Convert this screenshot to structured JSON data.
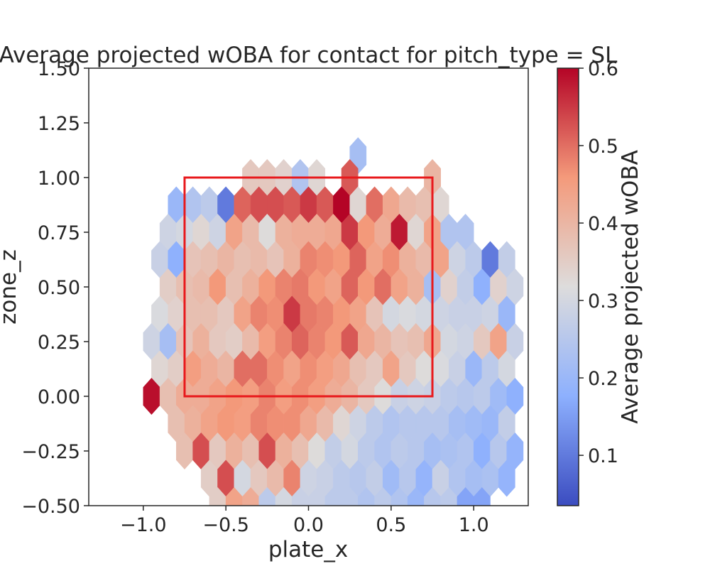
{
  "chart_data": {
    "type": "heatmap",
    "title": "Average projected wOBA for contact for pitch_type = SL",
    "xlabel": "plate_x",
    "ylabel": "zone_z",
    "xlim": [
      -1.33,
      1.33
    ],
    "ylim": [
      -0.5,
      1.5
    ],
    "xticks": [
      -1.0,
      -0.5,
      0.0,
      0.5,
      1.0
    ],
    "xtick_labels": [
      "−1.0",
      "−0.5",
      "0.0",
      "0.5",
      "1.0"
    ],
    "yticks": [
      -0.5,
      -0.25,
      0.0,
      0.25,
      0.5,
      0.75,
      1.0,
      1.25,
      1.5
    ],
    "ytick_labels": [
      "−0.50",
      "−0.25",
      "0.00",
      "0.25",
      "0.50",
      "0.75",
      "1.00",
      "1.25",
      "1.50"
    ],
    "colorbar": {
      "label": "Average projected wOBA",
      "colormap": "coolwarm",
      "range": [
        0.035,
        0.6
      ],
      "ticks": [
        0.1,
        0.2,
        0.3,
        0.4,
        0.5,
        0.6
      ],
      "tick_labels": [
        "0.1",
        "0.2",
        "0.3",
        "0.4",
        "0.5",
        "0.6"
      ]
    },
    "strike_zone": {
      "x": [
        -0.75,
        0.75
      ],
      "z": [
        0.0,
        1.0
      ],
      "color": "#e8191c"
    },
    "hex_width_x": 0.1,
    "hex_row_z": 0.125,
    "hex_cells": [
      [
        0.3,
        1.1,
        0.22
      ],
      [
        -0.35,
        1.0,
        0.36
      ],
      [
        -0.25,
        1.0,
        0.36
      ],
      [
        -0.15,
        1.0,
        0.34
      ],
      [
        -0.05,
        1.0,
        0.24
      ],
      [
        0.05,
        1.0,
        0.33
      ],
      [
        0.25,
        1.0,
        0.52
      ],
      [
        0.75,
        1.0,
        0.4
      ],
      [
        -0.8,
        0.875,
        0.2
      ],
      [
        -0.7,
        0.875,
        0.24
      ],
      [
        -0.6,
        0.875,
        0.26
      ],
      [
        -0.5,
        0.875,
        0.1
      ],
      [
        -0.4,
        0.875,
        0.51
      ],
      [
        -0.3,
        0.875,
        0.53
      ],
      [
        -0.2,
        0.875,
        0.53
      ],
      [
        -0.1,
        0.875,
        0.52
      ],
      [
        0.0,
        0.875,
        0.55
      ],
      [
        0.1,
        0.875,
        0.52
      ],
      [
        0.2,
        0.875,
        0.6
      ],
      [
        0.3,
        0.875,
        0.33
      ],
      [
        0.4,
        0.875,
        0.5
      ],
      [
        0.5,
        0.875,
        0.43
      ],
      [
        0.6,
        0.875,
        0.39
      ],
      [
        0.7,
        0.875,
        0.38
      ],
      [
        0.8,
        0.875,
        0.33
      ],
      [
        -0.85,
        0.75,
        0.29
      ],
      [
        -0.75,
        0.75,
        0.3
      ],
      [
        -0.65,
        0.75,
        0.33
      ],
      [
        -0.55,
        0.75,
        0.29
      ],
      [
        -0.45,
        0.75,
        0.44
      ],
      [
        -0.35,
        0.75,
        0.39
      ],
      [
        -0.25,
        0.75,
        0.32
      ],
      [
        -0.15,
        0.75,
        0.41
      ],
      [
        -0.05,
        0.75,
        0.42
      ],
      [
        0.05,
        0.75,
        0.42
      ],
      [
        0.15,
        0.75,
        0.43
      ],
      [
        0.25,
        0.75,
        0.55
      ],
      [
        0.35,
        0.75,
        0.46
      ],
      [
        0.45,
        0.75,
        0.42
      ],
      [
        0.55,
        0.75,
        0.58
      ],
      [
        0.65,
        0.75,
        0.33
      ],
      [
        0.75,
        0.75,
        0.44
      ],
      [
        0.85,
        0.75,
        0.24
      ],
      [
        0.95,
        0.75,
        0.24
      ],
      [
        -0.9,
        0.625,
        0.28
      ],
      [
        -0.8,
        0.625,
        0.18
      ],
      [
        -0.7,
        0.625,
        0.37
      ],
      [
        -0.6,
        0.625,
        0.38
      ],
      [
        -0.5,
        0.625,
        0.4
      ],
      [
        -0.4,
        0.625,
        0.38
      ],
      [
        -0.3,
        0.625,
        0.39
      ],
      [
        -0.2,
        0.625,
        0.37
      ],
      [
        -0.1,
        0.625,
        0.41
      ],
      [
        0.0,
        0.625,
        0.48
      ],
      [
        0.1,
        0.625,
        0.47
      ],
      [
        0.2,
        0.625,
        0.46
      ],
      [
        0.3,
        0.625,
        0.51
      ],
      [
        0.4,
        0.625,
        0.44
      ],
      [
        0.5,
        0.625,
        0.47
      ],
      [
        0.6,
        0.625,
        0.41
      ],
      [
        0.7,
        0.625,
        0.39
      ],
      [
        0.8,
        0.625,
        0.44
      ],
      [
        0.9,
        0.625,
        0.29
      ],
      [
        1.0,
        0.625,
        0.26
      ],
      [
        1.1,
        0.625,
        0.1
      ],
      [
        1.2,
        0.625,
        0.27
      ],
      [
        -0.85,
        0.5,
        0.35
      ],
      [
        -0.75,
        0.5,
        0.38
      ],
      [
        -0.65,
        0.5,
        0.39
      ],
      [
        -0.55,
        0.5,
        0.46
      ],
      [
        -0.45,
        0.5,
        0.38
      ],
      [
        -0.35,
        0.5,
        0.41
      ],
      [
        -0.25,
        0.5,
        0.46
      ],
      [
        -0.15,
        0.5,
        0.48
      ],
      [
        -0.05,
        0.5,
        0.49
      ],
      [
        0.05,
        0.5,
        0.46
      ],
      [
        0.15,
        0.5,
        0.44
      ],
      [
        0.25,
        0.5,
        0.51
      ],
      [
        0.35,
        0.5,
        0.46
      ],
      [
        0.45,
        0.5,
        0.5
      ],
      [
        0.55,
        0.5,
        0.44
      ],
      [
        0.65,
        0.5,
        0.41
      ],
      [
        0.75,
        0.5,
        0.22
      ],
      [
        0.85,
        0.5,
        0.34
      ],
      [
        0.95,
        0.5,
        0.27
      ],
      [
        1.05,
        0.5,
        0.18
      ],
      [
        1.15,
        0.5,
        0.34
      ],
      [
        1.25,
        0.5,
        0.29
      ],
      [
        -0.9,
        0.375,
        0.31
      ],
      [
        -0.8,
        0.375,
        0.34
      ],
      [
        -0.7,
        0.375,
        0.38
      ],
      [
        -0.6,
        0.375,
        0.38
      ],
      [
        -0.5,
        0.375,
        0.36
      ],
      [
        -0.4,
        0.375,
        0.44
      ],
      [
        -0.3,
        0.375,
        0.48
      ],
      [
        -0.2,
        0.375,
        0.47
      ],
      [
        -0.1,
        0.375,
        0.55
      ],
      [
        0.0,
        0.375,
        0.49
      ],
      [
        0.1,
        0.375,
        0.48
      ],
      [
        0.2,
        0.375,
        0.46
      ],
      [
        0.3,
        0.375,
        0.44
      ],
      [
        0.4,
        0.375,
        0.37
      ],
      [
        0.5,
        0.375,
        0.3
      ],
      [
        0.6,
        0.375,
        0.31
      ],
      [
        0.7,
        0.375,
        0.3
      ],
      [
        0.8,
        0.375,
        0.29
      ],
      [
        0.9,
        0.375,
        0.28
      ],
      [
        1.0,
        0.375,
        0.28
      ],
      [
        1.1,
        0.375,
        0.29
      ],
      [
        1.2,
        0.375,
        0.2
      ],
      [
        -0.95,
        0.25,
        0.29
      ],
      [
        -0.85,
        0.25,
        0.22
      ],
      [
        -0.75,
        0.25,
        0.37
      ],
      [
        -0.65,
        0.25,
        0.41
      ],
      [
        -0.55,
        0.25,
        0.36
      ],
      [
        -0.45,
        0.25,
        0.35
      ],
      [
        -0.35,
        0.25,
        0.39
      ],
      [
        -0.25,
        0.25,
        0.45
      ],
      [
        -0.15,
        0.25,
        0.48
      ],
      [
        -0.05,
        0.25,
        0.51
      ],
      [
        0.05,
        0.25,
        0.48
      ],
      [
        0.15,
        0.25,
        0.46
      ],
      [
        0.25,
        0.25,
        0.52
      ],
      [
        0.35,
        0.25,
        0.43
      ],
      [
        0.45,
        0.25,
        0.4
      ],
      [
        0.55,
        0.25,
        0.37
      ],
      [
        0.65,
        0.25,
        0.38
      ],
      [
        0.75,
        0.25,
        0.43
      ],
      [
        0.85,
        0.25,
        0.3
      ],
      [
        0.95,
        0.25,
        0.29
      ],
      [
        1.05,
        0.25,
        0.36
      ],
      [
        1.15,
        0.25,
        0.44
      ],
      [
        1.25,
        0.25,
        0.28
      ],
      [
        -0.9,
        0.125,
        0.33
      ],
      [
        -0.8,
        0.125,
        0.35
      ],
      [
        -0.7,
        0.125,
        0.45
      ],
      [
        -0.6,
        0.125,
        0.42
      ],
      [
        -0.5,
        0.125,
        0.4
      ],
      [
        -0.4,
        0.125,
        0.5
      ],
      [
        -0.3,
        0.125,
        0.5
      ],
      [
        -0.2,
        0.125,
        0.47
      ],
      [
        -0.1,
        0.125,
        0.44
      ],
      [
        0.0,
        0.125,
        0.47
      ],
      [
        0.1,
        0.125,
        0.45
      ],
      [
        0.2,
        0.125,
        0.43
      ],
      [
        0.3,
        0.125,
        0.38
      ],
      [
        0.4,
        0.125,
        0.36
      ],
      [
        0.5,
        0.125,
        0.44
      ],
      [
        0.6,
        0.125,
        0.36
      ],
      [
        0.7,
        0.125,
        0.32
      ],
      [
        0.8,
        0.125,
        0.31
      ],
      [
        0.9,
        0.125,
        0.28
      ],
      [
        1.0,
        0.125,
        0.2
      ],
      [
        1.1,
        0.125,
        0.26
      ],
      [
        1.2,
        0.125,
        0.3
      ],
      [
        -0.95,
        0.0,
        0.59
      ],
      [
        -0.85,
        0.0,
        0.38
      ],
      [
        -0.75,
        0.0,
        0.42
      ],
      [
        -0.65,
        0.0,
        0.42
      ],
      [
        -0.55,
        0.0,
        0.44
      ],
      [
        -0.45,
        0.0,
        0.46
      ],
      [
        -0.35,
        0.0,
        0.45
      ],
      [
        -0.25,
        0.0,
        0.48
      ],
      [
        -0.15,
        0.0,
        0.45
      ],
      [
        -0.05,
        0.0,
        0.47
      ],
      [
        0.05,
        0.0,
        0.45
      ],
      [
        0.15,
        0.0,
        0.42
      ],
      [
        0.25,
        0.0,
        0.4
      ],
      [
        0.35,
        0.0,
        0.36
      ],
      [
        0.45,
        0.0,
        0.32
      ],
      [
        0.55,
        0.0,
        0.28
      ],
      [
        0.65,
        0.0,
        0.29
      ],
      [
        0.75,
        0.0,
        0.28
      ],
      [
        0.85,
        0.0,
        0.26
      ],
      [
        0.95,
        0.0,
        0.25
      ],
      [
        1.05,
        0.0,
        0.26
      ],
      [
        1.15,
        0.0,
        0.21
      ],
      [
        1.25,
        0.0,
        0.18
      ],
      [
        -0.8,
        -0.125,
        0.38
      ],
      [
        -0.7,
        -0.125,
        0.41
      ],
      [
        -0.6,
        -0.125,
        0.44
      ],
      [
        -0.5,
        -0.125,
        0.46
      ],
      [
        -0.4,
        -0.125,
        0.45
      ],
      [
        -0.3,
        -0.125,
        0.48
      ],
      [
        -0.2,
        -0.125,
        0.47
      ],
      [
        -0.1,
        -0.125,
        0.47
      ],
      [
        0.0,
        -0.125,
        0.43
      ],
      [
        0.1,
        -0.125,
        0.39
      ],
      [
        0.2,
        -0.125,
        0.33
      ],
      [
        0.3,
        -0.125,
        0.29
      ],
      [
        0.4,
        -0.125,
        0.26
      ],
      [
        0.5,
        -0.125,
        0.24
      ],
      [
        0.6,
        -0.125,
        0.25
      ],
      [
        0.7,
        -0.125,
        0.25
      ],
      [
        0.8,
        -0.125,
        0.25
      ],
      [
        0.9,
        -0.125,
        0.22
      ],
      [
        1.0,
        -0.125,
        0.21
      ],
      [
        1.1,
        -0.125,
        0.2
      ],
      [
        1.2,
        -0.125,
        0.27
      ],
      [
        -0.75,
        -0.25,
        0.38
      ],
      [
        -0.65,
        -0.25,
        0.53
      ],
      [
        -0.55,
        -0.25,
        0.36
      ],
      [
        -0.45,
        -0.25,
        0.41
      ],
      [
        -0.35,
        -0.25,
        0.38
      ],
      [
        -0.25,
        -0.25,
        0.53
      ],
      [
        -0.15,
        -0.25,
        0.41
      ],
      [
        -0.05,
        -0.25,
        0.38
      ],
      [
        0.05,
        -0.25,
        0.32
      ],
      [
        0.15,
        -0.25,
        0.27
      ],
      [
        0.25,
        -0.25,
        0.3
      ],
      [
        0.35,
        -0.25,
        0.26
      ],
      [
        0.45,
        -0.25,
        0.24
      ],
      [
        0.55,
        -0.25,
        0.26
      ],
      [
        0.65,
        -0.25,
        0.25
      ],
      [
        0.75,
        -0.25,
        0.22
      ],
      [
        0.85,
        -0.25,
        0.23
      ],
      [
        0.95,
        -0.25,
        0.24
      ],
      [
        1.05,
        -0.25,
        0.18
      ],
      [
        1.15,
        -0.25,
        0.25
      ],
      [
        1.25,
        -0.25,
        0.19
      ],
      [
        -0.6,
        -0.375,
        0.35
      ],
      [
        -0.5,
        -0.375,
        0.53
      ],
      [
        -0.4,
        -0.375,
        0.3
      ],
      [
        -0.3,
        -0.375,
        0.36
      ],
      [
        -0.2,
        -0.375,
        0.39
      ],
      [
        -0.1,
        -0.375,
        0.48
      ],
      [
        0.0,
        -0.375,
        0.29
      ],
      [
        0.1,
        -0.375,
        0.28
      ],
      [
        0.2,
        -0.375,
        0.26
      ],
      [
        0.3,
        -0.375,
        0.25
      ],
      [
        0.4,
        -0.375,
        0.27
      ],
      [
        0.5,
        -0.375,
        0.21
      ],
      [
        0.6,
        -0.375,
        0.25
      ],
      [
        0.7,
        -0.375,
        0.19
      ],
      [
        0.8,
        -0.375,
        0.28
      ],
      [
        0.9,
        -0.375,
        0.24
      ],
      [
        1.0,
        -0.375,
        0.22
      ],
      [
        1.1,
        -0.375,
        0.23
      ],
      [
        1.2,
        -0.375,
        0.19
      ],
      [
        -0.55,
        -0.5,
        0.35
      ],
      [
        -0.45,
        -0.5,
        0.44
      ],
      [
        -0.35,
        -0.5,
        0.42
      ],
      [
        -0.25,
        -0.5,
        0.26
      ],
      [
        -0.15,
        -0.5,
        0.3
      ],
      [
        -0.05,
        -0.5,
        0.28
      ],
      [
        0.05,
        -0.5,
        0.28
      ],
      [
        0.15,
        -0.5,
        0.26
      ],
      [
        0.25,
        -0.5,
        0.26
      ],
      [
        0.35,
        -0.5,
        0.24
      ],
      [
        0.45,
        -0.5,
        0.26
      ],
      [
        0.55,
        -0.5,
        0.24
      ],
      [
        0.65,
        -0.5,
        0.2
      ],
      [
        0.75,
        -0.5,
        0.25
      ],
      [
        0.85,
        -0.5,
        0.26
      ],
      [
        0.95,
        -0.5,
        0.16
      ],
      [
        1.05,
        -0.5,
        0.16
      ],
      [
        -0.2,
        -0.625,
        0.45
      ],
      [
        0.0,
        -0.625,
        0.39
      ],
      [
        0.1,
        -0.625,
        0.21
      ],
      [
        0.2,
        -0.625,
        0.17
      ],
      [
        0.3,
        -0.625,
        0.15
      ],
      [
        0.4,
        -0.625,
        0.23
      ],
      [
        0.5,
        -0.625,
        0.2
      ],
      [
        0.6,
        -0.625,
        0.2
      ],
      [
        0.25,
        -0.75,
        0.24
      ],
      [
        0.5,
        -0.75,
        0.25
      ]
    ]
  }
}
